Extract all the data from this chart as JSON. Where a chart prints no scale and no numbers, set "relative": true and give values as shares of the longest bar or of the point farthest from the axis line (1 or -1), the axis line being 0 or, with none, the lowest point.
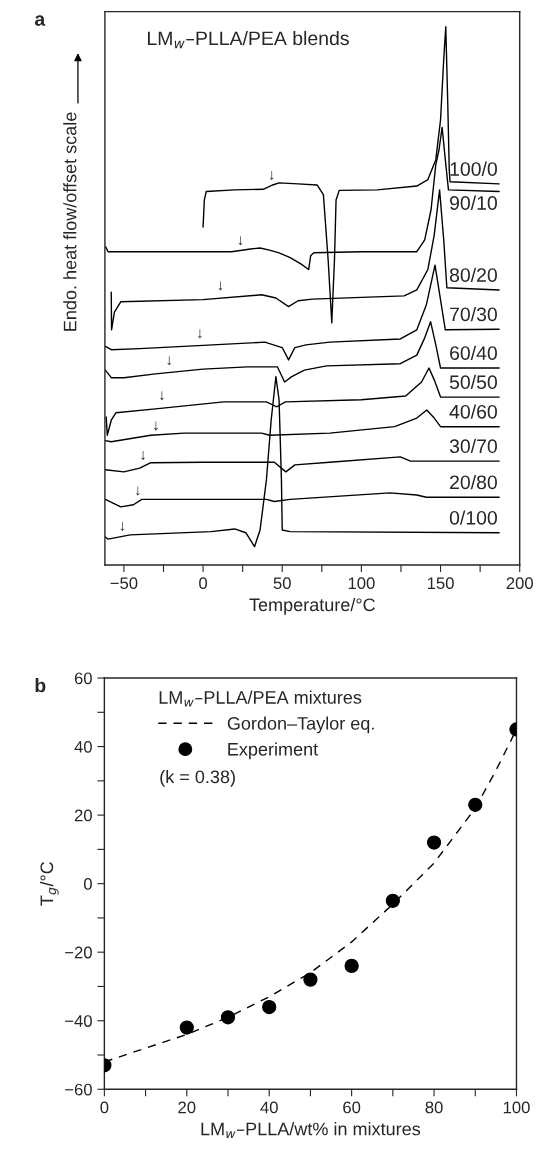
{
  "chart_data": [
    {
      "type": "line",
      "title": "LM$_{w}$–PLLA/PEA blends",
      "xlabel": "Temperature/°C",
      "ylabel": "Endo. heat flow/offset scale",
      "relative": true,
      "tick_labels": "x",
      "xlim": [
        -62,
        200
      ],
      "xticks": [
        -50,
        {
          "value": -25,
          "label": null
        },
        0,
        {
          "value": 25,
          "label": null
        },
        50,
        {
          "value": 75,
          "label": null
        },
        100,
        {
          "value": 125,
          "label": null
        },
        150,
        {
          "value": 175,
          "label": null
        },
        200
      ],
      "annotations": [
        "a",
        {
          "text": "↓",
          "x": 43.4,
          "y": 0.71
        },
        {
          "text": "↓",
          "x": 23.6,
          "y": 0.589
        },
        {
          "text": "↓",
          "x": 11,
          "y": 0.505
        },
        {
          "text": "↓",
          "x": -2,
          "y": 0.416
        },
        {
          "text": "↓",
          "x": -21.4,
          "y": 0.366
        },
        {
          "text": "↓",
          "x": -26,
          "y": 0.301
        },
        {
          "text": "↓",
          "x": -29.8,
          "y": 0.245
        },
        {
          "text": "↓",
          "x": -37.9,
          "y": 0.19
        },
        {
          "text": "↓",
          "x": -41.2,
          "y": 0.124
        },
        {
          "text": "↓",
          "x": -51,
          "y": 0.058
        }
      ],
      "series": [
        {
          "name": "100/0",
          "color": "#000000",
          "x": [
            0,
            0.8,
            2,
            20,
            38,
            44,
            48,
            60,
            72,
            76,
            79,
            81.3,
            83,
            84,
            86,
            110,
            135,
            142,
            147,
            150,
            152,
            153.3,
            154.5,
            155.5,
            156,
            187
          ],
          "values": [
            0.628,
            0.678,
            0.694,
            0.697,
            0.698,
            0.706,
            0.71,
            0.708,
            0.706,
            0.688,
            0.567,
            0.45,
            0.567,
            0.678,
            0.696,
            0.697,
            0.704,
            0.716,
            0.753,
            0.827,
            0.939,
            1.0,
            0.865,
            0.734,
            0.712,
            0.708
          ]
        },
        {
          "name": "90/10",
          "color": "#000000",
          "x": [
            -61.5,
            -60,
            -40,
            0,
            18,
            30,
            36,
            42,
            48,
            55,
            62,
            66.7,
            68,
            70,
            100,
            135,
            140,
            144,
            147,
            149,
            151,
            153,
            155,
            187
          ],
          "values": [
            0.591,
            0.582,
            0.582,
            0.582,
            0.582,
            0.587,
            0.589,
            0.585,
            0.58,
            0.571,
            0.559,
            0.549,
            0.575,
            0.58,
            0.582,
            0.582,
            0.604,
            0.66,
            0.744,
            0.771,
            0.813,
            0.753,
            0.697,
            0.694
          ]
        },
        {
          "name": "80/20",
          "color": "#000000",
          "x": [
            -58,
            -57.8,
            -56,
            -52,
            0,
            37,
            46,
            54,
            60,
            69,
            127,
            135,
            142,
            146,
            149.4,
            152,
            154,
            187
          ],
          "values": [
            0.507,
            0.437,
            0.47,
            0.489,
            0.493,
            0.502,
            0.496,
            0.48,
            0.491,
            0.494,
            0.5,
            0.511,
            0.549,
            0.613,
            0.697,
            0.604,
            0.515,
            0.511
          ]
        },
        {
          "name": "70/30",
          "color": "#000000",
          "x": [
            -61.7,
            -58,
            -40,
            0,
            39,
            50,
            54,
            58,
            65,
            80,
            124.6,
            135,
            141,
            146.5,
            149,
            153,
            187
          ],
          "values": [
            0.406,
            0.4,
            0.402,
            0.408,
            0.414,
            0.404,
            0.381,
            0.404,
            0.409,
            0.414,
            0.42,
            0.437,
            0.483,
            0.557,
            0.511,
            0.437,
            0.438
          ]
        },
        {
          "name": "60/40",
          "color": "#000000",
          "x": [
            -61.7,
            -58,
            -50,
            -30,
            0,
            28,
            47,
            51.5,
            56,
            64,
            78,
            124.6,
            135,
            140,
            143.7,
            147,
            150,
            187
          ],
          "values": [
            0.362,
            0.348,
            0.348,
            0.355,
            0.364,
            0.368,
            0.368,
            0.34,
            0.35,
            0.362,
            0.37,
            0.374,
            0.39,
            0.422,
            0.452,
            0.409,
            0.366,
            0.366
          ]
        },
        {
          "name": "50/50",
          "color": "#000000",
          "x": [
            -61.2,
            -60.5,
            -58,
            -55,
            -30,
            13,
            40,
            46.6,
            52,
            100,
            128,
            138,
            142.7,
            146,
            150,
            187
          ],
          "values": [
            0.275,
            0.241,
            0.269,
            0.283,
            0.29,
            0.303,
            0.303,
            0.294,
            0.303,
            0.307,
            0.314,
            0.34,
            0.366,
            0.344,
            0.312,
            0.312
          ]
        },
        {
          "name": "40/60",
          "color": "#000000",
          "x": [
            -61.7,
            -58,
            -33,
            -12,
            37,
            42,
            80,
            121,
            135,
            141.3,
            146,
            150,
            187
          ],
          "values": [
            0.231,
            0.229,
            0.241,
            0.245,
            0.245,
            0.241,
            0.245,
            0.257,
            0.273,
            0.288,
            0.273,
            0.257,
            0.257
          ]
        },
        {
          "name": "30/70",
          "color": "#000000",
          "x": [
            -61.7,
            -50,
            -40,
            -33,
            0,
            45,
            52.3,
            58,
            80,
            124.6,
            131,
            187
          ],
          "values": [
            0.177,
            0.173,
            0.18,
            0.19,
            0.191,
            0.191,
            0.173,
            0.186,
            0.191,
            0.201,
            0.193,
            0.193
          ]
        },
        {
          "name": "20/80",
          "color": "#000000",
          "x": [
            -61.7,
            -52,
            -44,
            -38.7,
            0,
            40,
            45,
            55,
            118,
            135,
            141,
            187
          ],
          "values": [
            0.122,
            0.108,
            0.112,
            0.122,
            0.122,
            0.122,
            0.118,
            0.122,
            0.134,
            0.13,
            0.126,
            0.126
          ]
        },
        {
          "name": "0/100",
          "color": "#000000",
          "x": [
            -61.7,
            -60,
            -46,
            5,
            20,
            27,
            32.5,
            36,
            40,
            43,
            46,
            48,
            49.5,
            50,
            55,
            187
          ],
          "values": [
            0.052,
            0.048,
            0.056,
            0.062,
            0.067,
            0.06,
            0.034,
            0.065,
            0.158,
            0.269,
            0.35,
            0.307,
            0.158,
            0.065,
            0.062,
            0.06
          ]
        }
      ]
    },
    {
      "type": "scatter",
      "xlabel": "LM$_{w}$–PLLA/wt% in mixtures",
      "ylabel": "T$_{g}$/°C",
      "xlim": [
        0,
        100
      ],
      "ylim": [
        -60,
        60
      ],
      "xticks": [
        0,
        {
          "value": 10,
          "label": null
        },
        20,
        {
          "value": 30,
          "label": null
        },
        40,
        {
          "value": 50,
          "label": null
        },
        60,
        {
          "value": 70,
          "label": null
        },
        80,
        {
          "value": 90,
          "label": null
        },
        100
      ],
      "yticks": [
        -60,
        {
          "value": -50,
          "label": null
        },
        -40,
        {
          "value": -30,
          "label": null
        },
        -20,
        {
          "value": -10,
          "label": null
        },
        0,
        {
          "value": 10,
          "label": null
        },
        20,
        {
          "value": 30,
          "label": null
        },
        40,
        {
          "value": 50,
          "label": null
        },
        60
      ],
      "legend": "top left",
      "legend_title": "LM$_{w}$–PLLA/PEA mixtures",
      "annotations": [
        "b",
        "(k = 0.38)"
      ],
      "series": [
        {
          "type": "line",
          "name": "Gordon–Taylor eq.",
          "color": "#000000",
          "line_style": "dashed",
          "x": [
            0,
            10,
            20,
            30,
            40,
            50,
            60,
            70,
            80,
            90,
            95,
            100
          ],
          "values": [
            -52,
            -48,
            -44,
            -39,
            -33,
            -26,
            -17,
            -6,
            6,
            22,
            33,
            45
          ]
        },
        {
          "name": "Experiment",
          "color": "#000000",
          "marker": "circle",
          "x": [
            0,
            20,
            30,
            40,
            50,
            60,
            70,
            80,
            90,
            100
          ],
          "values": [
            -53,
            -42,
            -39,
            -36,
            -28,
            -24,
            -5,
            12,
            23,
            45
          ]
        }
      ]
    }
  ]
}
